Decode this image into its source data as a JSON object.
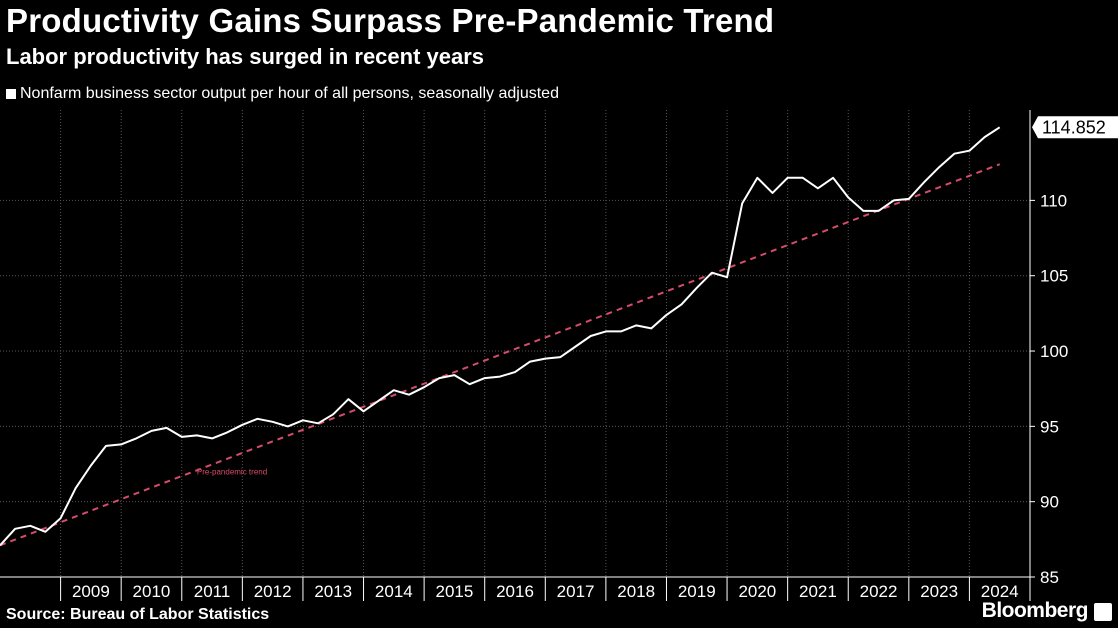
{
  "header": {
    "title": "Productivity Gains Surpass Pre-Pandemic Trend",
    "subtitle": "Labor productivity has surged in recent years"
  },
  "footer": {
    "source": "Source: Bureau of Labor Statistics",
    "brand": "Bloomberg"
  },
  "colors": {
    "series": "#ffffff",
    "trend": "#d64c6b",
    "grid": "#555555",
    "background": "#000000"
  },
  "chart_data": {
    "type": "line",
    "title": "Productivity Gains Surpass Pre-Pandemic Trend",
    "subtitle": "Labor productivity has surged in recent years",
    "xlabel": "",
    "ylabel": "",
    "ylim": [
      85,
      116
    ],
    "yticks": [
      85,
      90,
      95,
      100,
      105,
      110
    ],
    "xticks": [
      "2009",
      "2010",
      "2011",
      "2012",
      "2013",
      "2014",
      "2015",
      "2016",
      "2017",
      "2018",
      "2019",
      "2020",
      "2021",
      "2022",
      "2023",
      "2024"
    ],
    "grid": true,
    "legend": "top-left",
    "series": [
      {
        "name": "Nonfarm business sector output per hour of all persons, seasonally adjusted",
        "x": [
          "2008-Q1",
          "2008-Q2",
          "2008-Q3",
          "2008-Q4",
          "2009-Q1",
          "2009-Q2",
          "2009-Q3",
          "2009-Q4",
          "2010-Q1",
          "2010-Q2",
          "2010-Q3",
          "2010-Q4",
          "2011-Q1",
          "2011-Q2",
          "2011-Q3",
          "2011-Q4",
          "2012-Q1",
          "2012-Q2",
          "2012-Q3",
          "2012-Q4",
          "2013-Q1",
          "2013-Q2",
          "2013-Q3",
          "2013-Q4",
          "2014-Q1",
          "2014-Q2",
          "2014-Q3",
          "2014-Q4",
          "2015-Q1",
          "2015-Q2",
          "2015-Q3",
          "2015-Q4",
          "2016-Q1",
          "2016-Q2",
          "2016-Q3",
          "2016-Q4",
          "2017-Q1",
          "2017-Q2",
          "2017-Q3",
          "2017-Q4",
          "2018-Q1",
          "2018-Q2",
          "2018-Q3",
          "2018-Q4",
          "2019-Q1",
          "2019-Q2",
          "2019-Q3",
          "2019-Q4",
          "2020-Q1",
          "2020-Q2",
          "2020-Q3",
          "2020-Q4",
          "2021-Q1",
          "2021-Q2",
          "2021-Q3",
          "2021-Q4",
          "2022-Q1",
          "2022-Q2",
          "2022-Q3",
          "2022-Q4",
          "2023-Q1",
          "2023-Q2",
          "2023-Q3",
          "2023-Q4",
          "2024-Q1",
          "2024-Q2",
          "2024-Q3"
        ],
        "values": [
          87.1,
          88.2,
          88.4,
          88.0,
          88.9,
          90.9,
          92.4,
          93.7,
          93.8,
          94.2,
          94.7,
          94.9,
          94.3,
          94.4,
          94.2,
          94.6,
          95.1,
          95.5,
          95.3,
          95.0,
          95.4,
          95.2,
          95.8,
          96.8,
          96.0,
          96.7,
          97.4,
          97.1,
          97.6,
          98.2,
          98.4,
          97.8,
          98.2,
          98.3,
          98.6,
          99.3,
          99.5,
          99.6,
          100.3,
          101.0,
          101.3,
          101.3,
          101.7,
          101.5,
          102.4,
          103.1,
          104.2,
          105.2,
          104.9,
          109.8,
          111.5,
          110.5,
          111.5,
          111.5,
          110.8,
          111.5,
          110.2,
          109.3,
          109.3,
          110.0,
          110.1,
          111.2,
          112.2,
          113.1,
          113.3,
          114.2,
          114.852
        ]
      },
      {
        "name": "",
        "type": "trend",
        "x": [
          "2008-Q1",
          "2024-Q3"
        ],
        "values": [
          87.1,
          112.4
        ]
      }
    ],
    "annotations": [
      {
        "text": "Pre-pandemic trend",
        "x": "2011-Q2",
        "y": 91.8
      },
      {
        "text": "114.852",
        "x": "2024-Q3",
        "y": 114.852
      }
    ]
  }
}
